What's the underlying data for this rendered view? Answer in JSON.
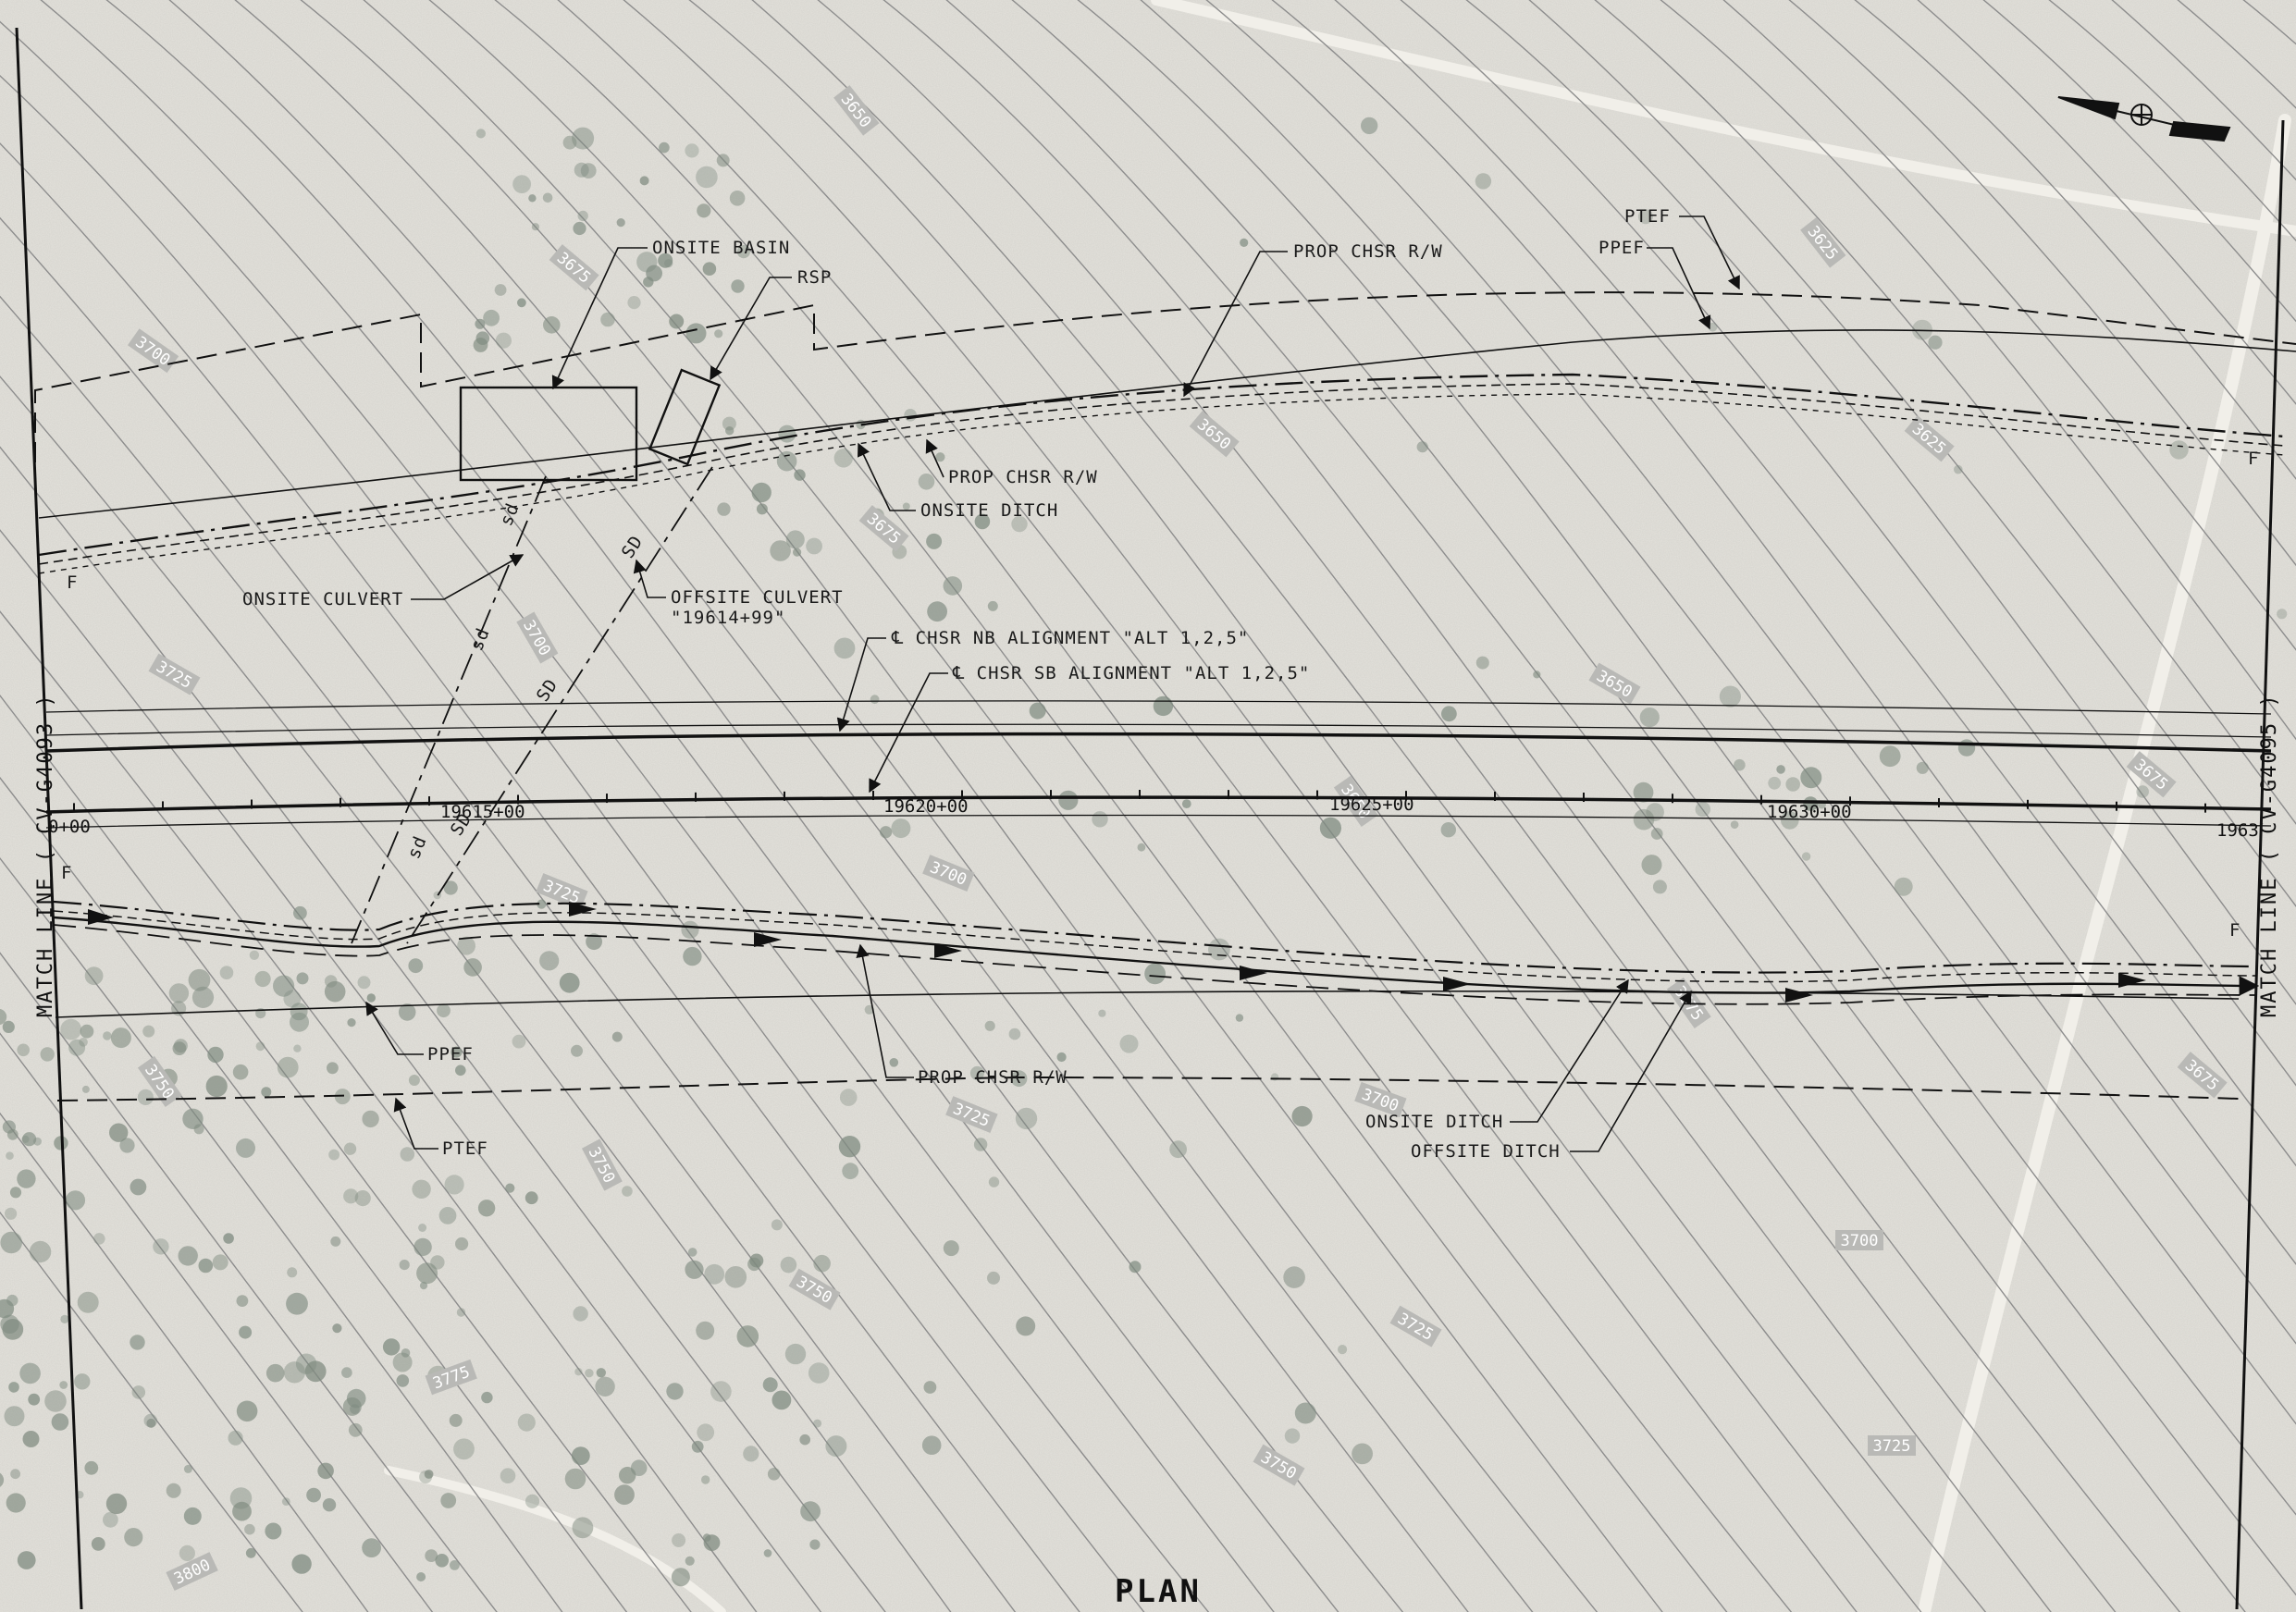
{
  "sheet": {
    "title": "PLAN",
    "match_left": "MATCH LINE ( CV-G4093 )",
    "match_right": "MATCH LINE ( CV-G4095 )"
  },
  "colors": {
    "ground": "#e4e2dc",
    "contour": "#8d8d8d",
    "linework": "#111111",
    "vegetation": "#7f8b80"
  },
  "stations": [
    {
      "label": "0+00"
    },
    {
      "label": "19615+00"
    },
    {
      "label": "19620+00"
    },
    {
      "label": "19625+00"
    },
    {
      "label": "19630+00"
    },
    {
      "label": "1963"
    }
  ],
  "callouts": {
    "onsite_basin": "ONSITE BASIN",
    "rsp": "RSP",
    "prop_row_top": "PROP CHSR R/W",
    "ptef_top": "PTEF",
    "ppef_top": "PPEF",
    "prop_row_mid": "PROP CHSR R/W",
    "onsite_ditch_top": "ONSITE DITCH",
    "onsite_culvert": "ONSITE CULVERT",
    "offsite_culvert": "OFFSITE CULVERT",
    "offsite_culvert_sta": "\"19614+99\"",
    "nb_alignment": "℄ CHSR NB ALIGNMENT \"ALT 1,2,5\"",
    "sb_alignment": "℄ CHSR SB ALIGNMENT \"ALT 1,2,5\"",
    "prop_row_bottom": "PROP CHSR R/W",
    "ppef_bottom": "PPEF",
    "ptef_bottom": "PTEF",
    "onsite_ditch_bottom": "ONSITE DITCH",
    "offsite_ditch_bottom": "OFFSITE DITCH"
  },
  "pipe_labels": {
    "onsite": "sd",
    "offsite": "SD"
  },
  "fence_mark": "F",
  "contours": [
    {
      "label": "3650"
    },
    {
      "label": "3625"
    },
    {
      "label": "3675"
    },
    {
      "label": "3700"
    },
    {
      "label": "3650"
    },
    {
      "label": "3625"
    },
    {
      "label": "3675"
    },
    {
      "label": "3700"
    },
    {
      "label": "3725"
    },
    {
      "label": "3650"
    },
    {
      "label": "3650"
    },
    {
      "label": "3675"
    },
    {
      "label": "3725"
    },
    {
      "label": "3700"
    },
    {
      "label": "3675"
    },
    {
      "label": "3675"
    },
    {
      "label": "3750"
    },
    {
      "label": "3725"
    },
    {
      "label": "3700"
    },
    {
      "label": "3750"
    },
    {
      "label": "3750"
    },
    {
      "label": "3700"
    },
    {
      "label": "3725"
    },
    {
      "label": "3775"
    },
    {
      "label": "3750"
    },
    {
      "label": "3725"
    },
    {
      "label": "3800"
    }
  ]
}
